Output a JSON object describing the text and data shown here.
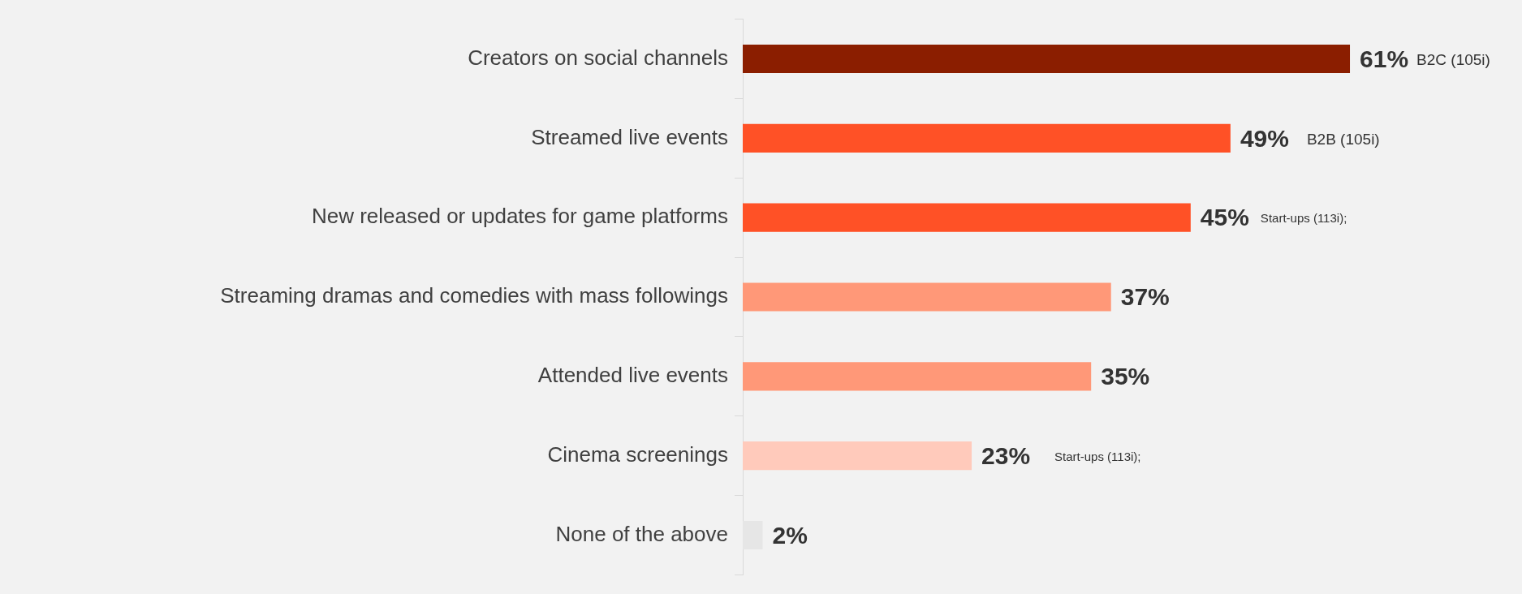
{
  "chart_data": {
    "type": "bar",
    "orientation": "horizontal",
    "categories": [
      "Creators on social channels",
      "Streamed live events",
      "New released or updates for game platforms",
      "Streaming dramas and comedies with mass followings",
      "Attended live events",
      "Cinema screenings",
      "None of the above"
    ],
    "values": [
      61,
      49,
      45,
      37,
      35,
      23,
      2
    ],
    "colors": [
      "#8b1e00",
      "#ff5126",
      "#ff5126",
      "#ff9878",
      "#ff9878",
      "#ffcabb",
      "#e6e6e6"
    ],
    "value_labels": [
      "61%",
      "49%",
      "45%",
      "37%",
      "35%",
      "23%",
      "2%"
    ],
    "annotations": [
      "B2C (105i)",
      "B2B (105i)",
      "Start-ups (113i);",
      "Start-ups (113i);"
    ],
    "legend": false,
    "grid": false
  }
}
